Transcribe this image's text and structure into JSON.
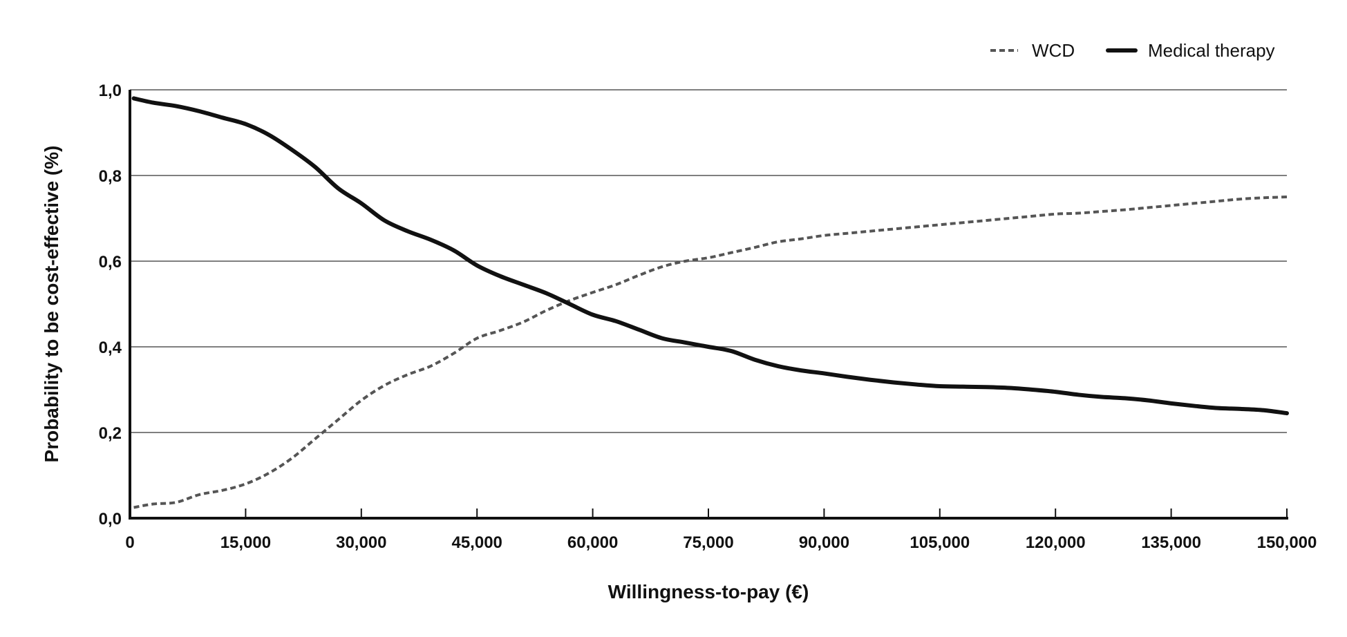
{
  "chart_data": {
    "type": "line",
    "title": "",
    "xlabel": "Willingness-to-pay (€)",
    "ylabel": "Probability to be cost-effective (%)",
    "xlim": [
      0,
      150000
    ],
    "ylim": [
      0,
      1
    ],
    "x_ticks": [
      0,
      15000,
      30000,
      45000,
      60000,
      75000,
      90000,
      105000,
      120000,
      135000,
      150000
    ],
    "x_tick_labels": [
      "0",
      "15,000",
      "30,000",
      "45,000",
      "60,000",
      "75,000",
      "90,000",
      "105,000",
      "120,000",
      "135,000",
      "150,000"
    ],
    "y_ticks": [
      0,
      0.2,
      0.4,
      0.6,
      0.8,
      1.0
    ],
    "y_tick_labels": [
      "0,0",
      "0,2",
      "0,4",
      "0,6",
      "0,8",
      "1,0"
    ],
    "grid": "horizontal",
    "legend_position": "top-right",
    "series": [
      {
        "name": "WCD",
        "style": "dashed",
        "color": "#555555",
        "x": [
          500,
          3000,
          6000,
          9000,
          12000,
          15000,
          18000,
          21000,
          24000,
          27000,
          30000,
          33000,
          36000,
          39000,
          42000,
          45000,
          48000,
          51000,
          54000,
          57000,
          60000,
          63000,
          66000,
          69000,
          72000,
          75000,
          78000,
          81000,
          84000,
          87000,
          90000,
          93000,
          96000,
          99000,
          102000,
          105000,
          108000,
          111000,
          114000,
          117000,
          120000,
          123000,
          126000,
          129000,
          132000,
          135000,
          138000,
          141000,
          144000,
          147000,
          150000
        ],
        "y": [
          0.025,
          0.033,
          0.037,
          0.055,
          0.065,
          0.08,
          0.105,
          0.14,
          0.185,
          0.23,
          0.275,
          0.31,
          0.335,
          0.355,
          0.385,
          0.42,
          0.438,
          0.458,
          0.485,
          0.508,
          0.527,
          0.545,
          0.567,
          0.587,
          0.6,
          0.608,
          0.62,
          0.632,
          0.645,
          0.652,
          0.66,
          0.665,
          0.67,
          0.675,
          0.68,
          0.685,
          0.69,
          0.695,
          0.7,
          0.705,
          0.71,
          0.712,
          0.716,
          0.72,
          0.725,
          0.73,
          0.735,
          0.74,
          0.745,
          0.748,
          0.75
        ]
      },
      {
        "name": "Medical therapy",
        "style": "solid",
        "color": "#111111",
        "x": [
          500,
          3000,
          6000,
          9000,
          12000,
          15000,
          18000,
          21000,
          24000,
          27000,
          30000,
          33000,
          36000,
          39000,
          42000,
          45000,
          48000,
          51000,
          54000,
          57000,
          60000,
          63000,
          66000,
          69000,
          72000,
          75000,
          78000,
          81000,
          84000,
          87000,
          90000,
          93000,
          96000,
          99000,
          102000,
          105000,
          108000,
          111000,
          114000,
          117000,
          120000,
          123000,
          126000,
          129000,
          132000,
          135000,
          138000,
          141000,
          144000,
          147000,
          150000
        ],
        "y": [
          0.98,
          0.97,
          0.962,
          0.95,
          0.935,
          0.92,
          0.895,
          0.86,
          0.82,
          0.77,
          0.735,
          0.695,
          0.67,
          0.65,
          0.625,
          0.59,
          0.565,
          0.545,
          0.525,
          0.5,
          0.475,
          0.46,
          0.44,
          0.42,
          0.41,
          0.4,
          0.39,
          0.37,
          0.355,
          0.345,
          0.338,
          0.33,
          0.323,
          0.317,
          0.312,
          0.308,
          0.307,
          0.306,
          0.304,
          0.3,
          0.295,
          0.288,
          0.283,
          0.28,
          0.275,
          0.268,
          0.262,
          0.257,
          0.255,
          0.252,
          0.245
        ]
      }
    ]
  }
}
